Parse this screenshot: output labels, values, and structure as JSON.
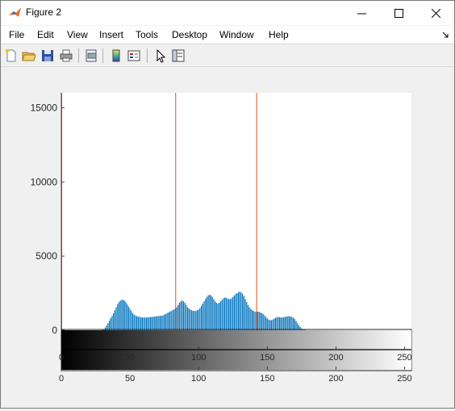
{
  "window": {
    "title": "Figure 2"
  },
  "menu": [
    "File",
    "Edit",
    "View",
    "Insert",
    "Tools",
    "Desktop",
    "Window",
    "Help"
  ],
  "toolbar": [
    "new-figure-icon",
    "open-file-icon",
    "save-icon",
    "print-icon",
    "print-preview-icon",
    "insert-colorbar-icon",
    "insert-legend-icon",
    "edit-plot-arrow-icon",
    "property-inspector-icon"
  ],
  "colors": {
    "bars": "#0072bd",
    "threshold": "#d95319",
    "axes_bg": "#ffffff"
  },
  "chart_data": {
    "type": "bar",
    "title": "",
    "xlabel": "",
    "ylabel": "",
    "xlim": [
      0,
      255
    ],
    "ylim": [
      0,
      16000
    ],
    "yticks": [
      "0",
      "5000",
      "10000",
      "15000"
    ],
    "colorbar_ticks": [
      "0",
      "50",
      "100",
      "150",
      "200",
      "250"
    ],
    "x_ticks": [
      "0",
      "50",
      "100",
      "150",
      "200",
      "250"
    ],
    "threshold_lines": [
      0,
      83,
      142
    ],
    "series": [
      {
        "values": [
          0,
          0,
          0,
          0,
          0,
          0,
          0,
          0,
          0,
          0,
          0,
          0,
          0,
          0,
          0,
          0,
          0,
          0,
          0,
          0,
          0,
          0,
          0,
          0,
          0,
          0,
          0,
          0,
          0,
          0,
          20,
          80,
          180,
          320,
          480,
          650,
          820,
          980,
          1150,
          1350,
          1550,
          1750,
          1900,
          2000,
          2050,
          2050,
          2000,
          1900,
          1750,
          1600,
          1450,
          1300,
          1150,
          1050,
          1000,
          950,
          920,
          900,
          880,
          870,
          860,
          860,
          860,
          870,
          880,
          890,
          900,
          910,
          920,
          940,
          950,
          960,
          970,
          980,
          1000,
          1050,
          1100,
          1150,
          1200,
          1250,
          1300,
          1350,
          1400,
          1450,
          1550,
          1700,
          1850,
          1950,
          2000,
          1950,
          1850,
          1700,
          1550,
          1450,
          1400,
          1350,
          1300,
          1300,
          1300,
          1350,
          1400,
          1500,
          1650,
          1800,
          1950,
          2100,
          2250,
          2350,
          2400,
          2350,
          2250,
          2100,
          1950,
          1850,
          1800,
          1850,
          1950,
          2050,
          2150,
          2200,
          2200,
          2150,
          2100,
          2100,
          2150,
          2250,
          2350,
          2450,
          2500,
          2550,
          2600,
          2550,
          2450,
          2300,
          2100,
          1900,
          1700,
          1550,
          1450,
          1350,
          1300,
          1250,
          1250,
          1250,
          1250,
          1200,
          1150,
          1100,
          1000,
          900,
          800,
          720,
          680,
          680,
          720,
          780,
          840,
          880,
          900,
          880,
          860,
          860,
          880,
          900,
          920,
          940,
          950,
          930,
          900,
          850,
          750,
          620,
          480,
          340,
          220,
          130,
          70,
          30,
          10,
          0,
          0,
          0,
          0,
          0,
          0,
          0,
          0,
          0,
          0,
          0,
          0,
          0,
          0,
          0,
          0,
          0,
          0,
          0,
          0,
          0,
          0,
          0,
          0,
          0,
          0,
          0,
          0,
          0,
          0,
          0,
          0,
          0,
          0,
          0,
          0,
          0,
          0,
          0,
          0,
          0,
          0,
          0,
          0,
          0,
          0,
          0,
          0,
          0,
          0,
          0,
          0,
          0,
          0,
          0,
          0,
          0,
          0,
          0,
          0,
          0,
          0,
          0,
          0,
          0,
          0,
          0,
          0,
          0,
          0,
          0,
          0,
          0,
          0,
          0,
          0,
          0,
          0,
          0,
          0,
          0,
          0,
          0,
          0,
          0,
          0,
          0
        ]
      }
    ]
  }
}
